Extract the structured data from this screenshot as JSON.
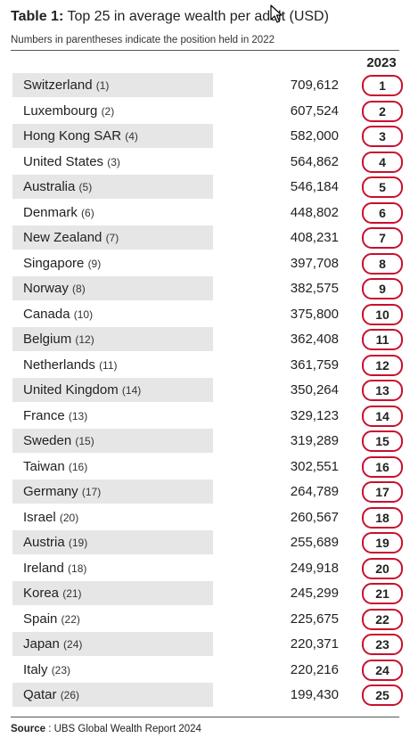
{
  "header": {
    "title_lead": "Table 1:",
    "title_rest": " Top 25 in average wealth per adult (USD)",
    "subtitle": "Numbers in parentheses indicate the position held in 2022"
  },
  "table": {
    "year_header": "2023",
    "rows": [
      {
        "country": "Switzerland",
        "prev": "(1)",
        "value": "709,612",
        "rank": "1"
      },
      {
        "country": "Luxembourg",
        "prev": "(2)",
        "value": "607,524",
        "rank": "2"
      },
      {
        "country": "Hong Kong SAR",
        "prev": "(4)",
        "value": "582,000",
        "rank": "3"
      },
      {
        "country": "United States",
        "prev": "(3)",
        "value": "564,862",
        "rank": "4"
      },
      {
        "country": "Australia",
        "prev": "(5)",
        "value": "546,184",
        "rank": "5"
      },
      {
        "country": "Denmark",
        "prev": "(6)",
        "value": "448,802",
        "rank": "6"
      },
      {
        "country": "New Zealand",
        "prev": "(7)",
        "value": "408,231",
        "rank": "7"
      },
      {
        "country": "Singapore",
        "prev": "(9)",
        "value": "397,708",
        "rank": "8"
      },
      {
        "country": "Norway",
        "prev": "(8)",
        "value": "382,575",
        "rank": "9"
      },
      {
        "country": "Canada",
        "prev": "(10)",
        "value": "375,800",
        "rank": "10"
      },
      {
        "country": "Belgium",
        "prev": "(12)",
        "value": "362,408",
        "rank": "11"
      },
      {
        "country": "Netherlands",
        "prev": "(11)",
        "value": "361,759",
        "rank": "12"
      },
      {
        "country": "United Kingdom",
        "prev": "(14)",
        "value": "350,264",
        "rank": "13"
      },
      {
        "country": "France",
        "prev": "(13)",
        "value": "329,123",
        "rank": "14"
      },
      {
        "country": "Sweden",
        "prev": "(15)",
        "value": "319,289",
        "rank": "15"
      },
      {
        "country": "Taiwan",
        "prev": "(16)",
        "value": "302,551",
        "rank": "16"
      },
      {
        "country": "Germany",
        "prev": "(17)",
        "value": "264,789",
        "rank": "17"
      },
      {
        "country": "Israel",
        "prev": "(20)",
        "value": "260,567",
        "rank": "18"
      },
      {
        "country": "Austria",
        "prev": "(19)",
        "value": "255,689",
        "rank": "19"
      },
      {
        "country": "Ireland",
        "prev": "(18)",
        "value": "249,918",
        "rank": "20"
      },
      {
        "country": "Korea",
        "prev": "(21)",
        "value": "245,299",
        "rank": "21"
      },
      {
        "country": "Spain",
        "prev": "(22)",
        "value": "225,675",
        "rank": "22"
      },
      {
        "country": "Japan",
        "prev": "(24)",
        "value": "220,371",
        "rank": "23"
      },
      {
        "country": "Italy",
        "prev": "(23)",
        "value": "220,216",
        "rank": "24"
      },
      {
        "country": "Qatar",
        "prev": "(26)",
        "value": "199,430",
        "rank": "25"
      }
    ]
  },
  "footer": {
    "source_label": "Source",
    "source_text": " : UBS Global Wealth Report 2024"
  },
  "colors": {
    "rank_ring": "#c8102e",
    "row_band": "#e6e6e6"
  }
}
